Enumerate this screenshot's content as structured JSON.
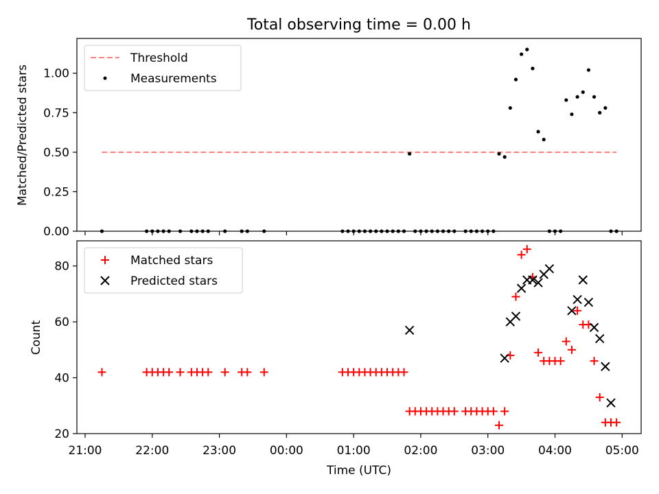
{
  "chart_data": [
    {
      "type": "scatter",
      "title": "Total observing time = 0.00 h",
      "xlabel": "",
      "ylabel": "Matched/Predicted stars",
      "ylim": [
        0.0,
        1.22
      ],
      "yticks": [
        "0.00",
        "0.25",
        "0.50",
        "0.75",
        "1.00"
      ],
      "yticks_values": [
        0.0,
        0.25,
        0.5,
        0.75,
        1.0
      ],
      "legend": {
        "placement": "top-left",
        "entries": [
          "Threshold",
          "Measurements"
        ]
      },
      "colors": {
        "threshold": "#ff7f7f",
        "measurements": "#000000"
      },
      "threshold": {
        "name": "Threshold",
        "y": 0.5,
        "x_start": "21:15",
        "x_end": "04:55"
      },
      "series": [
        {
          "name": "Measurements",
          "x": [
            "21:15",
            "21:55",
            "22:00",
            "22:05",
            "22:10",
            "22:15",
            "22:25",
            "22:35",
            "22:40",
            "22:45",
            "22:50",
            "23:05",
            "23:20",
            "23:25",
            "23:40",
            "00:50",
            "00:55",
            "01:00",
            "01:05",
            "01:10",
            "01:15",
            "01:20",
            "01:25",
            "01:30",
            "01:35",
            "01:40",
            "01:45",
            "01:50",
            "01:55",
            "02:00",
            "02:05",
            "02:10",
            "02:15",
            "02:20",
            "02:25",
            "02:30",
            "02:40",
            "02:45",
            "02:50",
            "02:55",
            "03:00",
            "03:05",
            "03:10",
            "03:15",
            "03:20",
            "03:25",
            "03:30",
            "03:35",
            "03:40",
            "03:45",
            "03:50",
            "03:55",
            "04:00",
            "04:05",
            "04:10",
            "04:15",
            "04:20",
            "04:25",
            "04:30",
            "04:35",
            "04:40",
            "04:45",
            "04:50",
            "04:55"
          ],
          "y": [
            0,
            0,
            0,
            0,
            0,
            0,
            0,
            0,
            0,
            0,
            0,
            0,
            0,
            0,
            0,
            0,
            0,
            0,
            0,
            0,
            0,
            0,
            0,
            0,
            0,
            0,
            0,
            0.49,
            0,
            0,
            0,
            0,
            0,
            0,
            0,
            0,
            0,
            0,
            0,
            0,
            0,
            0,
            0.49,
            0.47,
            0.78,
            0.96,
            1.12,
            1.15,
            1.03,
            0.63,
            0.58,
            0,
            0,
            0,
            0.83,
            0.74,
            0.85,
            0.88,
            1.02,
            0.85,
            0.75,
            0.78,
            0,
            0
          ]
        }
      ]
    },
    {
      "type": "scatter",
      "title": "",
      "xlabel": "Time (UTC)",
      "ylabel": "Count",
      "ylim": [
        20,
        89
      ],
      "yticks": [
        "20",
        "40",
        "60",
        "80"
      ],
      "yticks_values": [
        20,
        40,
        60,
        80
      ],
      "xlim": [
        "21:00",
        "05:17"
      ],
      "xticks": [
        "21:00",
        "22:00",
        "23:00",
        "00:00",
        "01:00",
        "02:00",
        "03:00",
        "04:00",
        "05:00"
      ],
      "legend": {
        "placement": "top-left",
        "entries": [
          "Matched stars",
          "Predicted stars"
        ]
      },
      "colors": {
        "matched": "#ff0000",
        "predicted": "#000000"
      },
      "series": [
        {
          "name": "Matched stars",
          "x": [
            "21:15",
            "21:55",
            "22:00",
            "22:05",
            "22:10",
            "22:15",
            "22:25",
            "22:35",
            "22:40",
            "22:45",
            "22:50",
            "23:05",
            "23:20",
            "23:25",
            "23:40",
            "00:50",
            "00:55",
            "01:00",
            "01:05",
            "01:10",
            "01:15",
            "01:20",
            "01:25",
            "01:30",
            "01:35",
            "01:40",
            "01:45",
            "01:50",
            "01:55",
            "02:00",
            "02:05",
            "02:10",
            "02:15",
            "02:20",
            "02:25",
            "02:30",
            "02:40",
            "02:45",
            "02:50",
            "02:55",
            "03:00",
            "03:05",
            "03:10",
            "03:15",
            "03:20",
            "03:25",
            "03:30",
            "03:35",
            "03:40",
            "03:45",
            "03:50",
            "03:55",
            "04:00",
            "04:05",
            "04:10",
            "04:15",
            "04:20",
            "04:25",
            "04:30",
            "04:35",
            "04:40",
            "04:45",
            "04:50",
            "04:55"
          ],
          "y": [
            42,
            42,
            42,
            42,
            42,
            42,
            42,
            42,
            42,
            42,
            42,
            42,
            42,
            42,
            42,
            42,
            42,
            42,
            42,
            42,
            42,
            42,
            42,
            42,
            42,
            42,
            42,
            28,
            28,
            28,
            28,
            28,
            28,
            28,
            28,
            28,
            28,
            28,
            28,
            28,
            28,
            28,
            23,
            28,
            48,
            69,
            84,
            86,
            76,
            49,
            46,
            46,
            46,
            46,
            53,
            50,
            64,
            59,
            59,
            46,
            33,
            24,
            24,
            24
          ]
        },
        {
          "name": "Predicted stars",
          "x": [
            "01:50",
            "03:15",
            "03:20",
            "03:25",
            "03:30",
            "03:35",
            "03:40",
            "03:45",
            "03:50",
            "03:55",
            "04:15",
            "04:20",
            "04:25",
            "04:30",
            "04:35",
            "04:40",
            "04:45",
            "04:50"
          ],
          "y": [
            57,
            47,
            60,
            62,
            72,
            75,
            75,
            74,
            77,
            79,
            64,
            68,
            75,
            67,
            58,
            54,
            44,
            31
          ]
        }
      ]
    }
  ]
}
